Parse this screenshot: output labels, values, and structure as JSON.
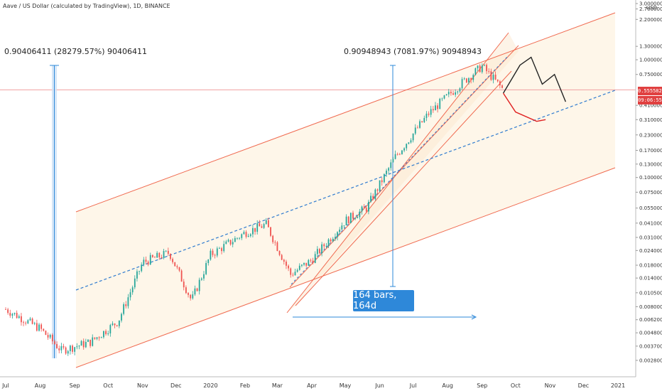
{
  "header": {
    "symbol_label": "Aave / US Dollar (calculated by TradingView), 1D, BINANCE"
  },
  "currency_label": "USD",
  "measure_left": {
    "label": "0.90406411 (28279.57%) 90406411"
  },
  "measure_right": {
    "label": "0.90948943 (7081.97%) 90948943"
  },
  "bars_label": "164 bars, 164d",
  "price_tag": {
    "value": "0.55558263",
    "time": "09:06:55"
  },
  "colors": {
    "up": "#26a69a",
    "down": "#ef5350",
    "channel": "#f06a50",
    "channel_fill": "#fdf3e1",
    "trend": "#2e7bcf",
    "measure": "#2e88d9",
    "projection_black": "#222222",
    "projection_red": "#e02020"
  },
  "chart_data": {
    "type": "candlestick",
    "title": "Aave / US Dollar (calculated by TradingView), 1D, BINANCE",
    "scale": "log",
    "y_ticks": [
      "3.00000000",
      "2.70000000",
      "2.20000000",
      "1.30000000",
      "1.00000000",
      "0.75000000",
      "0.55558263",
      "0.41000000",
      "0.31000000",
      "0.23000000",
      "0.17000000",
      "0.13000000",
      "0.10000000",
      "0.07500000",
      "0.05500000",
      "0.04100000",
      "0.03100000",
      "0.02400000",
      "0.01800000",
      "0.01400000",
      "0.01050000",
      "0.00800000",
      "0.00620000",
      "0.00480000",
      "0.00370000",
      "0.00280000"
    ],
    "x_ticks": [
      "Jul",
      "Aug",
      "Sep",
      "Oct",
      "Nov",
      "Dec",
      "2020",
      "Feb",
      "Mar",
      "Apr",
      "May",
      "Jun",
      "Jul",
      "Aug",
      "Sep",
      "Oct",
      "Nov",
      "Dec",
      "2021"
    ],
    "x_range": [
      "2019-07-01",
      "2021-01-05"
    ],
    "y_range": [
      0.0024,
      3.0
    ],
    "last_price": 0.55558263,
    "key_prices": [
      {
        "date": "2019-07-01",
        "close": 0.0076
      },
      {
        "date": "2019-08-01",
        "close": 0.0052
      },
      {
        "date": "2019-08-20",
        "close": 0.0034
      },
      {
        "date": "2019-09-15",
        "close": 0.004
      },
      {
        "date": "2019-10-10",
        "close": 0.006
      },
      {
        "date": "2019-11-01",
        "close": 0.019
      },
      {
        "date": "2019-11-25",
        "close": 0.023
      },
      {
        "date": "2019-12-15",
        "close": 0.009
      },
      {
        "date": "2020-01-01",
        "close": 0.022
      },
      {
        "date": "2020-02-01",
        "close": 0.034
      },
      {
        "date": "2020-02-20",
        "close": 0.04
      },
      {
        "date": "2020-03-13",
        "close": 0.015
      },
      {
        "date": "2020-04-01",
        "close": 0.02
      },
      {
        "date": "2020-05-01",
        "close": 0.043
      },
      {
        "date": "2020-05-20",
        "close": 0.055
      },
      {
        "date": "2020-06-15",
        "close": 0.15
      },
      {
        "date": "2020-07-15",
        "close": 0.35
      },
      {
        "date": "2020-08-15",
        "close": 0.65
      },
      {
        "date": "2020-09-01",
        "close": 0.88
      },
      {
        "date": "2020-09-20",
        "close": 0.5556
      }
    ],
    "projection_black": [
      {
        "date": "2020-09-20",
        "close": 0.52
      },
      {
        "date": "2020-10-05",
        "close": 0.9
      },
      {
        "date": "2020-10-15",
        "close": 1.05
      },
      {
        "date": "2020-10-25",
        "close": 0.62
      },
      {
        "date": "2020-11-05",
        "close": 0.75
      },
      {
        "date": "2020-11-15",
        "close": 0.44
      }
    ],
    "projection_red": [
      {
        "date": "2020-09-20",
        "close": 0.52
      },
      {
        "date": "2020-10-01",
        "close": 0.36
      },
      {
        "date": "2020-10-20",
        "close": 0.3
      },
      {
        "date": "2020-10-28",
        "close": 0.31
      }
    ],
    "annotations": [
      "0.90406411 (28279.57%) 90406411",
      "0.90948943 (7081.97%) 90948943",
      "164 bars, 164d"
    ]
  }
}
